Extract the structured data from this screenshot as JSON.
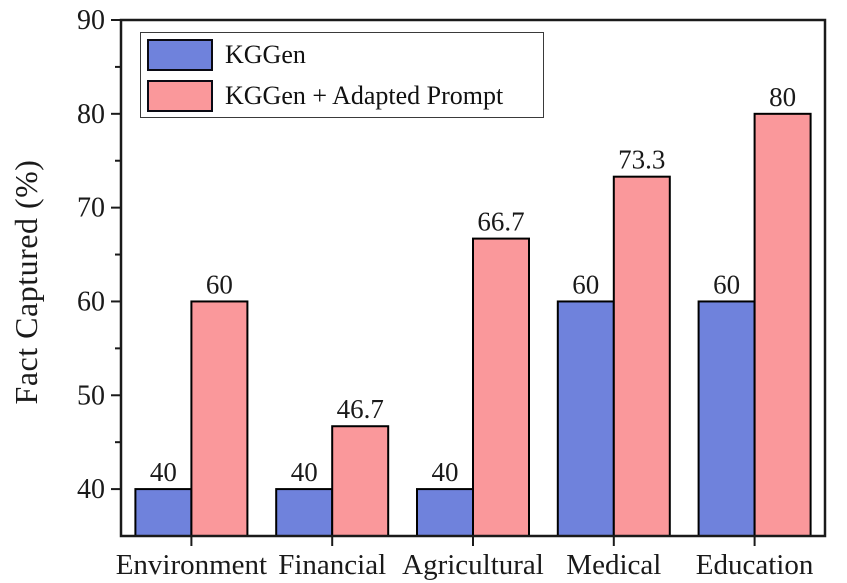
{
  "chart_data": {
    "type": "bar",
    "title": "",
    "xlabel": "",
    "ylabel": "Fact Captured (%)",
    "categories": [
      "Environment",
      "Financial",
      "Agricultural",
      "Medical",
      "Education"
    ],
    "series": [
      {
        "name": "KGGen",
        "color": "#6F82DC",
        "values": [
          40,
          40,
          40,
          60,
          60
        ],
        "labels": [
          "40",
          "40",
          "40",
          "60",
          "60"
        ]
      },
      {
        "name": "KGGen + Adapted Prompt",
        "color": "#FA989B",
        "values": [
          60,
          46.7,
          66.7,
          73.3,
          80
        ],
        "labels": [
          "60",
          "46.7",
          "66.7",
          "73.3",
          "80"
        ]
      }
    ],
    "ylim": [
      35,
      90
    ],
    "yticks": [
      40,
      50,
      60,
      70,
      80,
      90
    ],
    "yticks_minor": [
      45,
      55,
      65,
      75,
      85
    ],
    "grid": false,
    "legend_position": "top-left",
    "bar_border_color": "#000000",
    "axis_color": "#1a1a1a",
    "text_color": "#1a1a1a",
    "background": "#ffffff"
  }
}
